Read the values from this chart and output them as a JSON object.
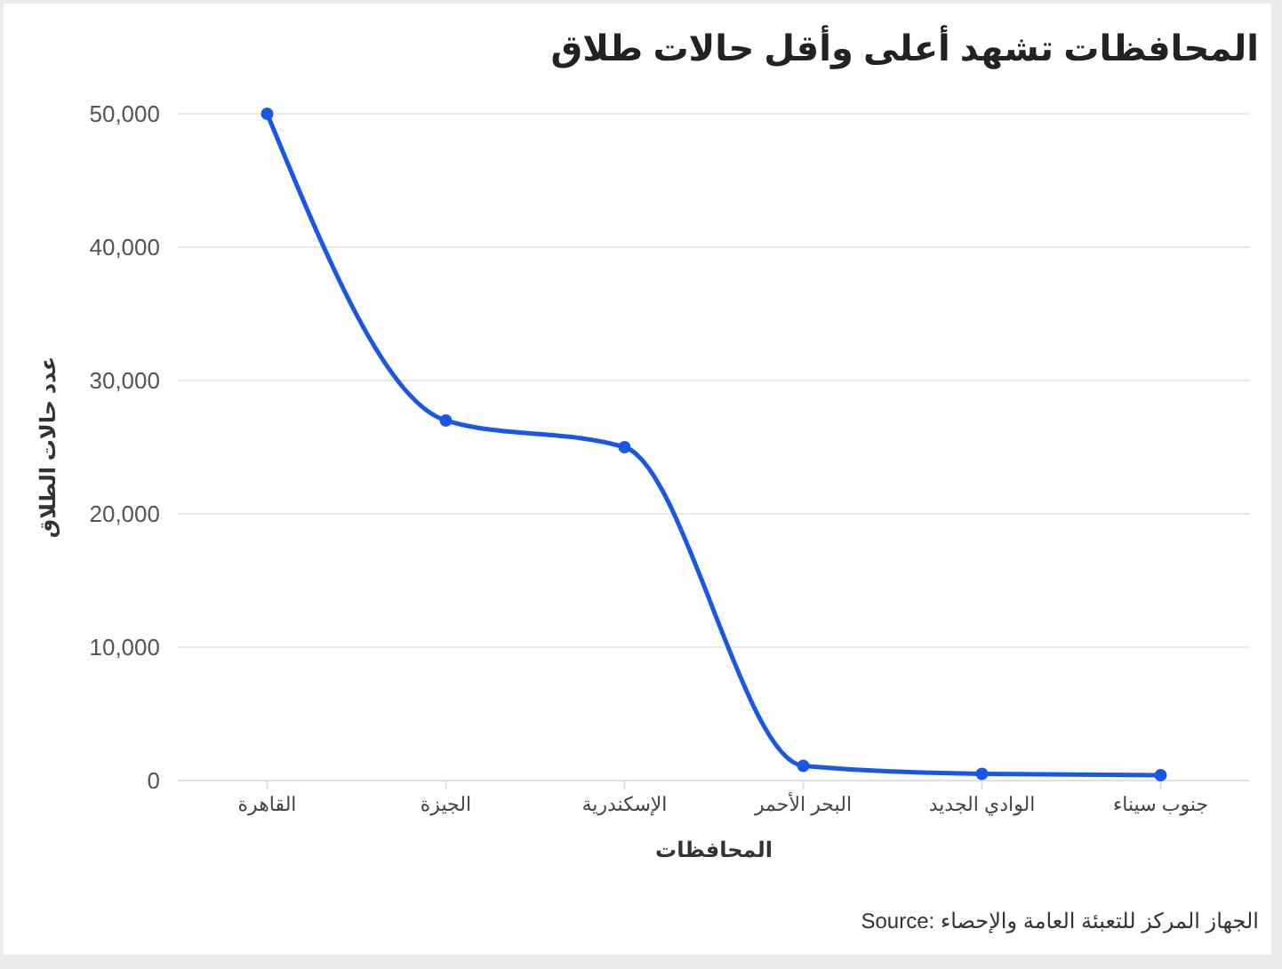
{
  "chart_data": {
    "type": "line",
    "title": "المحافظات تشهد أعلى وأقل حالات طلاق",
    "xlabel": "المحافظات",
    "ylabel": "عدد حالات الطلاق",
    "categories": [
      "القاهرة",
      "الجيزة",
      "الإسكندرية",
      "البحر الأحمر",
      "الوادي الجديد",
      "جنوب سيناء"
    ],
    "series": [
      {
        "color": "#1a56e8",
        "values": [
          50000,
          27000,
          25000,
          1100,
          500,
          400
        ]
      }
    ],
    "ylim": [
      0,
      50000
    ],
    "yticks": [
      {
        "value": 0,
        "label": "0"
      },
      {
        "value": 10000,
        "label": "10,000"
      },
      {
        "value": 20000,
        "label": "20,000"
      },
      {
        "value": 30000,
        "label": "30,000"
      },
      {
        "value": 40000,
        "label": "40,000"
      },
      {
        "value": 50000,
        "label": "50,000"
      }
    ],
    "grid": "y",
    "marker": "circle",
    "line_style": "solid",
    "annotations": [
      "Source: الجهاز المركز للتعبئة العامة والإحصاء"
    ]
  }
}
